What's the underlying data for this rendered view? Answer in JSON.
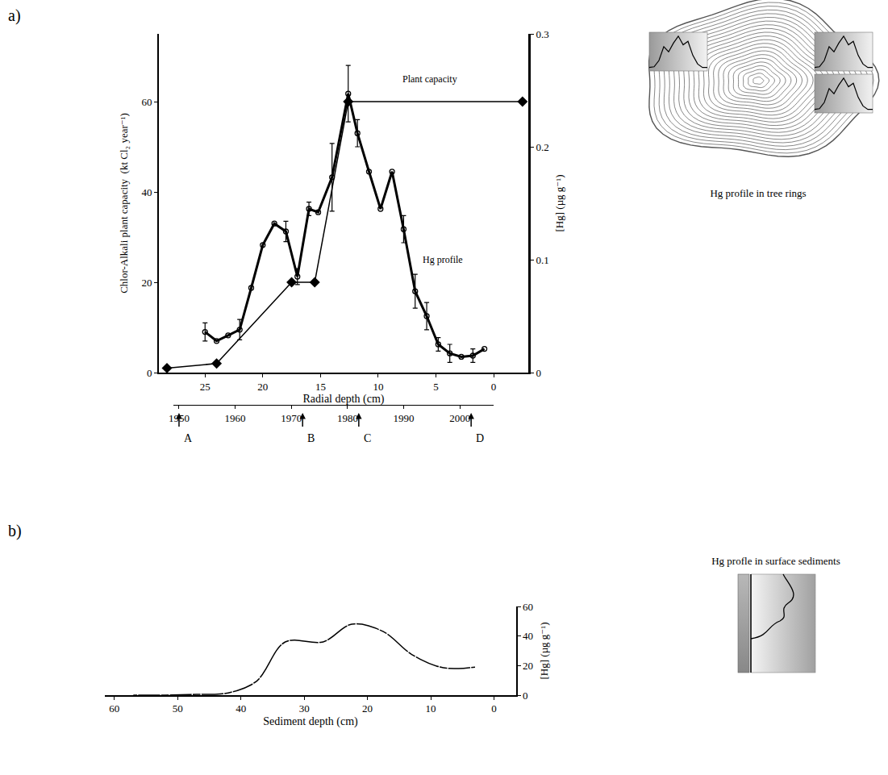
{
  "chart_data": [
    {
      "type": "line",
      "panel": "a)",
      "x_label": "Radial depth (cm)",
      "y_label": "Chlor-Alkali plant capacity  (kt Cl₂ year⁻¹)",
      "y2_label": "[Hg] (µg g⁻¹)",
      "xlim": [
        29,
        -3
      ],
      "xticks": [
        25,
        20,
        15,
        10,
        5,
        0
      ],
      "ylim": [
        0,
        75
      ],
      "yticks": [
        0,
        20,
        40,
        60
      ],
      "y2lim": [
        0,
        0.3
      ],
      "y2ticks": [
        0,
        0.1,
        0.2,
        0.3
      ],
      "series": [
        {
          "name": "Plant capacity",
          "color": "#000000",
          "marker": "diamond",
          "axis": "y",
          "x": [
            28.3,
            24,
            17.5,
            15.5,
            12.6,
            -2.5
          ],
          "values": [
            1,
            2,
            20,
            20,
            60,
            60
          ]
        },
        {
          "name": "Hg profile",
          "color": "#000000",
          "marker": "circle-open",
          "axis": "y2",
          "x": [
            25,
            24,
            23,
            22,
            21,
            20,
            19,
            18,
            17,
            16,
            15.2,
            14,
            12.6,
            11.8,
            10.8,
            9.8,
            8.8,
            7.8,
            6.8,
            5.8,
            4.8,
            3.8,
            2.8,
            1.8,
            0.8
          ],
          "values": [
            0.036,
            0.028,
            0.033,
            0.038,
            0.075,
            0.113,
            0.132,
            0.125,
            0.085,
            0.145,
            0.142,
            0.173,
            0.247,
            0.212,
            0.178,
            0.145,
            0.178,
            0.127,
            0.072,
            0.05,
            0.025,
            0.017,
            0.014,
            0.015,
            0.021
          ],
          "errors": [
            0.008,
            null,
            null,
            0.009,
            null,
            null,
            null,
            0.009,
            0.007,
            0.006,
            null,
            0.03,
            0.025,
            0.012,
            null,
            null,
            null,
            0.012,
            0.015,
            0.012,
            0.006,
            0.008,
            null,
            0.006,
            null
          ]
        }
      ],
      "date_axis": {
        "xlim": [
          1949,
          2006
        ],
        "xticks": [
          1950,
          1960,
          1970,
          1980,
          1990,
          2000
        ],
        "events": [
          {
            "label": "A",
            "x": 1950
          },
          {
            "label": "B",
            "x": 1972
          },
          {
            "label": "C",
            "x": 1982
          },
          {
            "label": "D",
            "x": 2002
          }
        ]
      },
      "inset_caption": "Hg profile in tree rings"
    },
    {
      "type": "line",
      "panel": "b)",
      "x_label": "Sediment depth (cm)",
      "y2_label": "[Hg] (µg g⁻¹)",
      "xlim": [
        61.5,
        -3.5
      ],
      "xticks": [
        60,
        50,
        40,
        30,
        20,
        10,
        0
      ],
      "y2lim": [
        0,
        60
      ],
      "y2ticks": [
        0,
        20,
        40,
        60
      ],
      "series": [
        {
          "color": "#000000",
          "marker": "circle-open",
          "line_style": "spline",
          "axis": "y2",
          "x": [
            57,
            52,
            47,
            42,
            37.5,
            33,
            27,
            22.5,
            17.5,
            13,
            8,
            3
          ],
          "values": [
            0,
            0,
            0.5,
            1.5,
            9.5,
            36,
            36,
            48,
            43,
            27.5,
            18.5,
            19
          ]
        }
      ],
      "inset_caption": "Hg profle in surface sediments"
    }
  ]
}
